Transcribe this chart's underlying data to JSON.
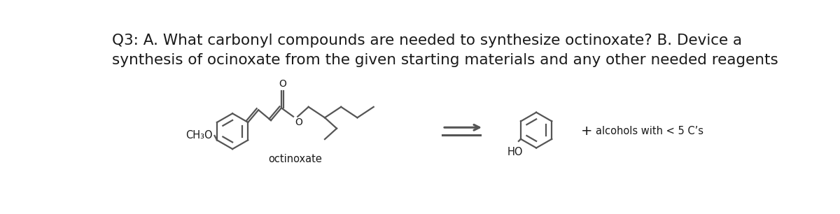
{
  "title_line1": "Q3: A. What carbonyl compounds are needed to synthesize octinoxate? B. Device a",
  "title_line2": "synthesis of ocinoxate from the given starting materials and any other needed reagents",
  "label_octinoxate": "octinoxate",
  "label_ch3o": "CH₃O",
  "label_ho": "HO",
  "label_alcohols": "alcohols with < 5 C’s",
  "label_plus": "+",
  "bg_color": "#ffffff",
  "text_color": "#1a1a1a",
  "struct_color": "#555555",
  "title_fontsize": 15.5,
  "label_fontsize": 10.5,
  "struct_linewidth": 1.6
}
